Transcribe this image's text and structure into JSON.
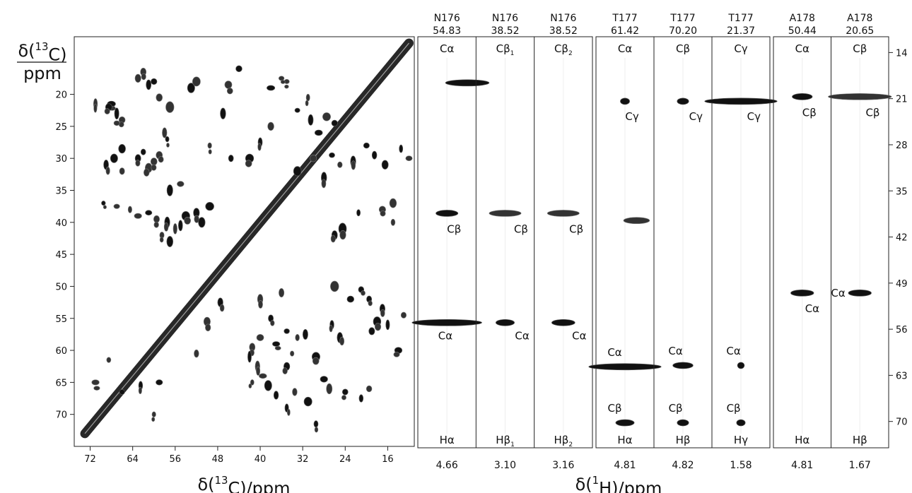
{
  "chart_data": [
    {
      "type": "scatter",
      "subtype": "2D 13C-13C correlation spectrum (contour peaks)",
      "ylabel_lines": [
        "δ(13C)",
        "ppm"
      ],
      "xlabel": "δ(13C)/ppm",
      "x_ticks": [
        72,
        64,
        56,
        48,
        40,
        32,
        24,
        16
      ],
      "y_ticks": [
        20,
        25,
        30,
        35,
        40,
        45,
        50,
        55,
        60,
        65,
        70
      ],
      "xlim": [
        75,
        11
      ],
      "ylim": [
        11,
        75
      ],
      "diagonal": {
        "from": 73,
        "to": 12
      },
      "peaks": [
        [
          63,
          17.5
        ],
        [
          62,
          16.5
        ],
        [
          61,
          18.5
        ],
        [
          60,
          18
        ],
        [
          59,
          20.5
        ],
        [
          57,
          22
        ],
        [
          68,
          21.5
        ],
        [
          67,
          23
        ],
        [
          66,
          24
        ],
        [
          71,
          21.5
        ],
        [
          68.5,
          22
        ],
        [
          67,
          24.5
        ],
        [
          66,
          28.5
        ],
        [
          63,
          30
        ],
        [
          62,
          29
        ],
        [
          69,
          31
        ],
        [
          67.5,
          30
        ],
        [
          66,
          32
        ],
        [
          61,
          31.5
        ],
        [
          60,
          30.5
        ],
        [
          59,
          29.5
        ],
        [
          57.5,
          27
        ],
        [
          58,
          26
        ],
        [
          69.5,
          37
        ],
        [
          67,
          37.5
        ],
        [
          64.5,
          38
        ],
        [
          63,
          39
        ],
        [
          61,
          38.5
        ],
        [
          59.5,
          39.5
        ],
        [
          57.5,
          40
        ],
        [
          56,
          41
        ],
        [
          58.5,
          42
        ],
        [
          57,
          43
        ],
        [
          55,
          40.5
        ],
        [
          54,
          39
        ],
        [
          52,
          38.5
        ],
        [
          51,
          40
        ],
        [
          49.5,
          37.5
        ],
        [
          53,
          19
        ],
        [
          52,
          18
        ],
        [
          57,
          35
        ],
        [
          55,
          34
        ],
        [
          33,
          22.5
        ],
        [
          31,
          20.5
        ],
        [
          30.5,
          24
        ],
        [
          29,
          26
        ],
        [
          27.5,
          23.5
        ],
        [
          26,
          24.5
        ],
        [
          35,
          18
        ],
        [
          38,
          19
        ],
        [
          36,
          17.5
        ],
        [
          44,
          16
        ],
        [
          46,
          18.5
        ],
        [
          47,
          23
        ],
        [
          49.5,
          28
        ],
        [
          45.5,
          30
        ],
        [
          42,
          30
        ],
        [
          40,
          27.5
        ],
        [
          38,
          25
        ],
        [
          33,
          32
        ],
        [
          30,
          30
        ],
        [
          28,
          33
        ],
        [
          26.5,
          29.5
        ],
        [
          25,
          31
        ],
        [
          22.5,
          30.5
        ],
        [
          20,
          28
        ],
        [
          18.5,
          29.5
        ],
        [
          16.5,
          31
        ],
        [
          13.5,
          28.5
        ],
        [
          12,
          30
        ],
        [
          26,
          42
        ],
        [
          24.5,
          41
        ],
        [
          21.5,
          38.5
        ],
        [
          17,
          38
        ],
        [
          15,
          37
        ],
        [
          15,
          40
        ],
        [
          35,
          62.5
        ],
        [
          34,
          60.5
        ],
        [
          33,
          58
        ],
        [
          31.5,
          57.5
        ],
        [
          29.5,
          61
        ],
        [
          28,
          64.5
        ],
        [
          27,
          66
        ],
        [
          24,
          66.5
        ],
        [
          21,
          67.5
        ],
        [
          19.5,
          66
        ],
        [
          40,
          58
        ],
        [
          41.5,
          59.5
        ],
        [
          37,
          59
        ],
        [
          38,
          55
        ],
        [
          40,
          52
        ],
        [
          36,
          51
        ],
        [
          35,
          57
        ],
        [
          42,
          61
        ],
        [
          40.5,
          62.5
        ],
        [
          39.5,
          64
        ],
        [
          38.5,
          65.5
        ],
        [
          41.5,
          65
        ],
        [
          37,
          67
        ],
        [
          33.5,
          66.5
        ],
        [
          35,
          69
        ],
        [
          31,
          68
        ],
        [
          29.5,
          71.5
        ],
        [
          26,
          50
        ],
        [
          23,
          52
        ],
        [
          21,
          50.5
        ],
        [
          19.5,
          52
        ],
        [
          17,
          53.5
        ],
        [
          18,
          55.5
        ],
        [
          16,
          56
        ],
        [
          19,
          57
        ],
        [
          13,
          54.5
        ],
        [
          68.5,
          61.5
        ],
        [
          66,
          66.5
        ],
        [
          60,
          70
        ],
        [
          62.5,
          65.5
        ],
        [
          59,
          65
        ],
        [
          52,
          60.5
        ],
        [
          50,
          55.5
        ],
        [
          47.5,
          52.5
        ],
        [
          25,
          58
        ],
        [
          26.5,
          56
        ],
        [
          14,
          60
        ],
        [
          71,
          65
        ]
      ]
    },
    {
      "type": "scatter",
      "subtype": "1H-13C correlation strips",
      "xlabel": "δ(1H)/ppm",
      "y_ticks": [
        14,
        21,
        28,
        35,
        42,
        49,
        56,
        63,
        70
      ],
      "ylim": [
        11.6,
        74
      ],
      "strips": [
        {
          "residue": "N176",
          "shift_13C": "54.83",
          "shift_1H": "4.66",
          "proton": "Hα",
          "top_label": "Cα",
          "sub": "",
          "peaks": [
            {
              "c": 18.6,
              "w": 0.75,
              "off": 0.35,
              "int": "strong",
              "label": "",
              "lx": 0,
              "ly": 0
            },
            {
              "c": 38.4,
              "w": 0.38,
              "off": 0.0,
              "int": "strong",
              "label": "Cβ",
              "lx": 0.05,
              "ly": 2.4
            },
            {
              "c": 55.0,
              "w": 1.2,
              "off": 0.0,
              "int": "strong",
              "label": "Cα",
              "lx": -0.1,
              "ly": 2.0
            }
          ]
        },
        {
          "residue": "N176",
          "shift_13C": "38.52",
          "shift_1H": "3.10",
          "proton": "Hβ",
          "top_label": "Cβ",
          "sub": "1",
          "peaks": [
            {
              "c": 38.4,
              "w": 0.55,
              "off": 0.0,
              "int": "light",
              "label": "Cβ",
              "lx": 0.2,
              "ly": 2.4
            },
            {
              "c": 55.0,
              "w": 0.32,
              "off": 0.0,
              "int": "strong",
              "label": "Cα",
              "lx": 0.22,
              "ly": 2.0
            }
          ]
        },
        {
          "residue": "N176",
          "shift_13C": "38.52",
          "shift_1H": "3.16",
          "proton": "Hβ",
          "top_label": "Cβ",
          "sub": "2",
          "peaks": [
            {
              "c": 38.4,
              "w": 0.55,
              "off": 0.0,
              "int": "light",
              "label": "Cβ",
              "lx": 0.15,
              "ly": 2.4
            },
            {
              "c": 55.0,
              "w": 0.4,
              "off": 0.0,
              "int": "strong",
              "label": "Cα",
              "lx": 0.2,
              "ly": 2.0
            }
          ]
        },
        {
          "residue": "T177",
          "shift_13C": "61.42",
          "shift_1H": "4.81",
          "proton": "Hα",
          "top_label": "Cα",
          "sub": "",
          "peaks": [
            {
              "c": 21.4,
              "w": 0.16,
              "off": 0.0,
              "int": "strong",
              "label": "Cγ",
              "lx": 0.05,
              "ly": 2.3
            },
            {
              "c": 39.5,
              "w": 0.45,
              "off": 0.2,
              "int": "light",
              "label": "",
              "lx": 0,
              "ly": 0
            },
            {
              "c": 61.7,
              "w": 1.25,
              "off": 0.0,
              "int": "strong",
              "label": "Cα",
              "lx": -0.25,
              "ly": -2.2
            },
            {
              "c": 70.2,
              "w": 0.32,
              "off": 0.0,
              "int": "strong",
              "label": "Cβ",
              "lx": -0.25,
              "ly": -2.2
            }
          ]
        },
        {
          "residue": "T177",
          "shift_13C": "70.20",
          "shift_1H": "4.82",
          "proton": "Hβ",
          "top_label": "Cβ",
          "sub": "",
          "peaks": [
            {
              "c": 21.4,
              "w": 0.2,
              "off": 0.0,
              "int": "strong",
              "label": "Cγ",
              "lx": 0.15,
              "ly": 2.3
            },
            {
              "c": 61.5,
              "w": 0.35,
              "off": 0.0,
              "int": "strong",
              "label": "Cα",
              "lx": -0.2,
              "ly": -2.2
            },
            {
              "c": 70.2,
              "w": 0.2,
              "off": 0.0,
              "int": "strong",
              "label": "Cβ",
              "lx": -0.2,
              "ly": -2.2
            }
          ]
        },
        {
          "residue": "T177",
          "shift_13C": "21.37",
          "shift_1H": "1.58",
          "proton": "Hγ",
          "top_label": "Cγ",
          "sub": "",
          "peaks": [
            {
              "c": 21.4,
              "w": 1.25,
              "off": 0.0,
              "int": "strong",
              "label": "Cγ",
              "lx": 0.15,
              "ly": 2.3
            },
            {
              "c": 61.5,
              "w": 0.12,
              "off": 0.0,
              "int": "strong",
              "label": "Cα",
              "lx": -0.2,
              "ly": -2.2
            },
            {
              "c": 70.2,
              "w": 0.15,
              "off": 0.0,
              "int": "strong",
              "label": "Cβ",
              "lx": -0.2,
              "ly": -2.2
            }
          ]
        },
        {
          "residue": "A178",
          "shift_13C": "50.44",
          "shift_1H": "4.81",
          "proton": "Hα",
          "top_label": "Cα",
          "sub": "",
          "peaks": [
            {
              "c": 20.7,
              "w": 0.35,
              "off": 0.0,
              "int": "strong",
              "label": "Cβ",
              "lx": 0.05,
              "ly": 2.4
            },
            {
              "c": 50.5,
              "w": 0.4,
              "off": 0.0,
              "int": "strong",
              "label": "Cα",
              "lx": 0.1,
              "ly": 2.4
            }
          ]
        },
        {
          "residue": "A178",
          "shift_13C": "20.65",
          "shift_1H": "1.67",
          "proton": "Hβ",
          "top_label": "Cβ",
          "sub": "",
          "peaks": [
            {
              "c": 20.7,
              "w": 1.1,
              "off": 0.0,
              "int": "light",
              "label": "Cβ",
              "lx": 0.15,
              "ly": 2.4
            },
            {
              "c": 50.5,
              "w": 0.4,
              "off": 0.0,
              "int": "strong",
              "label": "Cα",
              "lx": -0.45,
              "ly": 0.0
            }
          ]
        }
      ]
    }
  ]
}
